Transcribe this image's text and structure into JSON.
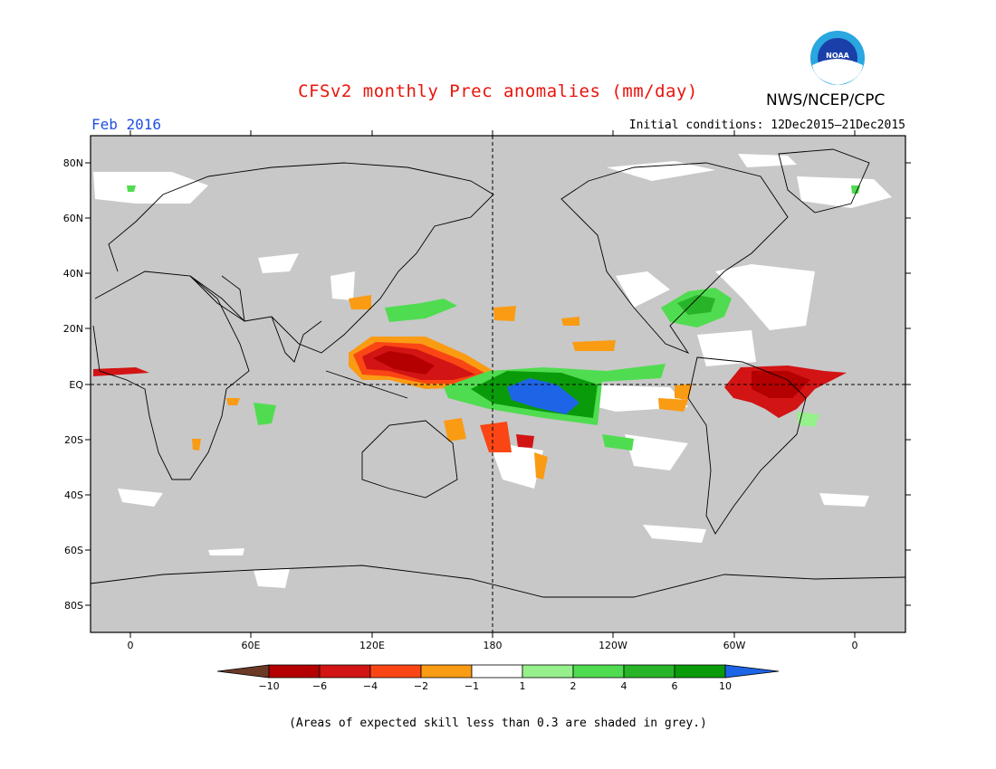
{
  "header": {
    "title": "CFSv2 monthly Prec anomalies (mm/day)",
    "agency": "NWS/NCEP/CPC",
    "logo_text": "NOAA",
    "month": "Feb 2016",
    "initial_conditions": "Initial conditions: 12Dec2015–21Dec2015"
  },
  "map": {
    "lat_labels": [
      "80N",
      "60N",
      "40N",
      "20N",
      "EQ",
      "20S",
      "40S",
      "60S",
      "80S"
    ],
    "lon_labels": [
      "0",
      "60E",
      "120E",
      "180",
      "120W",
      "60W",
      "0"
    ],
    "skill_mask_color": "#c8c8c8"
  },
  "colorbar": {
    "labels": [
      "−10",
      "−6",
      "−4",
      "−2",
      "−1",
      "1",
      "2",
      "4",
      "6",
      "10"
    ],
    "colors": [
      "#6b3a26",
      "#b40000",
      "#d21414",
      "#fa4614",
      "#fa9b14",
      "#ffffff",
      "#96f08c",
      "#50dc50",
      "#28b428",
      "#0a9b0a",
      "#1e64e6"
    ]
  },
  "footer": {
    "skill_note": "(Areas of expected skill less than 0.3 are shaded in grey.)"
  }
}
